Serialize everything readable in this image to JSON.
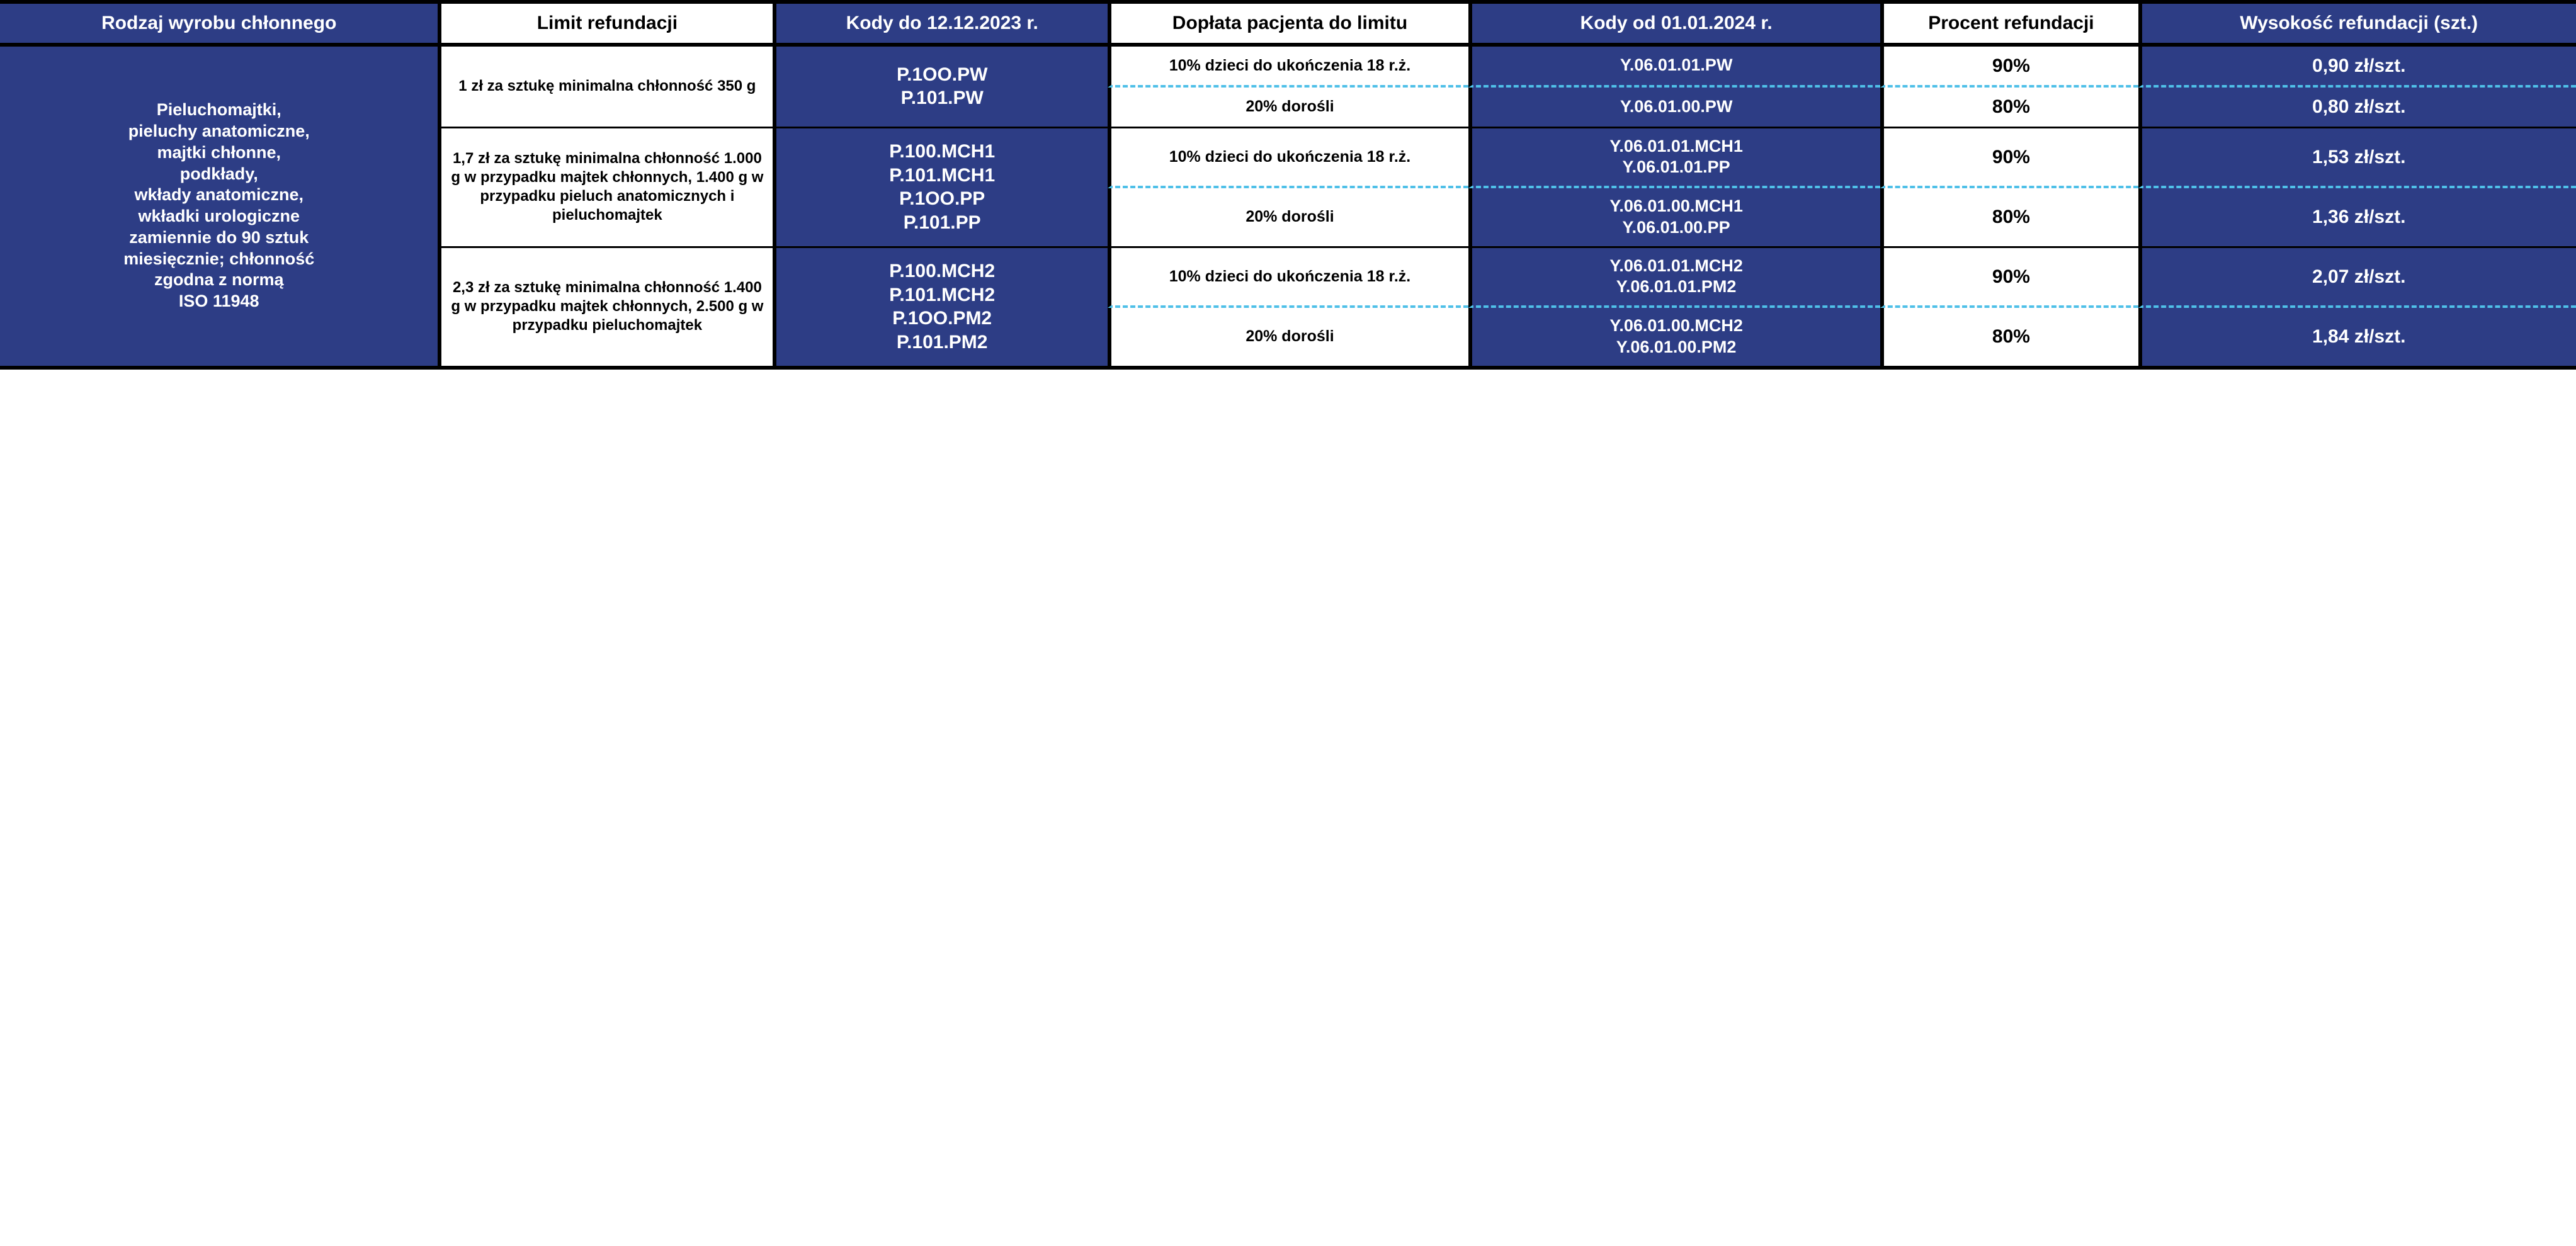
{
  "colors": {
    "blue_bg": "#2d3d85",
    "white_bg": "#ffffff",
    "text_white": "#ffffff",
    "text_black": "#000000",
    "border": "#000000",
    "dash": "#4fc0e8"
  },
  "headers": {
    "c1": "Rodzaj wyrobu chłonnego",
    "c2": "Limit refundacji",
    "c3": "Kody do 12.12.2023 r.",
    "c4": "Dopłata pacjenta do limitu",
    "c5": "Kody od 01.01.2024 r.",
    "c6": "Procent refundacji",
    "c7": "Wysokość refundacji (szt.)"
  },
  "row_label": "Pieluchomajtki,\npieluchy anatomiczne,\nmajtki chłonne,\npodkłady,\nwkłady anatomiczne,\nwkładki urologiczne\nzamiennie do 90 sztuk\nmiesięcznie; chłonność\nzgodna z normą\nISO 11948",
  "groups": [
    {
      "limit": "1 zł za sztukę minimalna chłonność 350 g",
      "codes_old": "P.1OO.PW\nP.101.PW",
      "sub": [
        {
          "doplata": "10% dzieci do ukończenia 18 r.ż.",
          "codes_new": "Y.06.01.01.PW",
          "pct": "90%",
          "val": "0,90 zł/szt."
        },
        {
          "doplata": "20% dorośli",
          "codes_new": "Y.06.01.00.PW",
          "pct": "80%",
          "val": "0,80 zł/szt."
        }
      ]
    },
    {
      "limit": "1,7 zł za sztukę minimalna chłonność 1.000 g w przypadku majtek chłonnych, 1.400 g w przypadku pieluch anatomicznych i pieluchomajtek",
      "codes_old": "P.100.MCH1\nP.101.MCH1\nP.1OO.PP\nP.101.PP",
      "sub": [
        {
          "doplata": "10% dzieci do ukończenia 18 r.ż.",
          "codes_new": "Y.06.01.01.MCH1\nY.06.01.01.PP",
          "pct": "90%",
          "val": "1,53 zł/szt."
        },
        {
          "doplata": "20% dorośli",
          "codes_new": "Y.06.01.00.MCH1\nY.06.01.00.PP",
          "pct": "80%",
          "val": "1,36 zł/szt."
        }
      ]
    },
    {
      "limit": "2,3 zł za sztukę minimalna chłonność 1.400 g w przypadku majtek chłonnych, 2.500 g w przypadku pieluchomajtek",
      "codes_old": "P.100.MCH2\nP.101.MCH2\nP.1OO.PM2\nP.101.PM2",
      "sub": [
        {
          "doplata": "10% dzieci do ukończenia 18 r.ż.",
          "codes_new": "Y.06.01.01.MCH2\nY.06.01.01.PM2",
          "pct": "90%",
          "val": "2,07 zł/szt."
        },
        {
          "doplata": "20% dorośli",
          "codes_new": "Y.06.01.00.MCH2\nY.06.01.00.PM2",
          "pct": "80%",
          "val": "1,84 zł/szt."
        }
      ]
    }
  ]
}
